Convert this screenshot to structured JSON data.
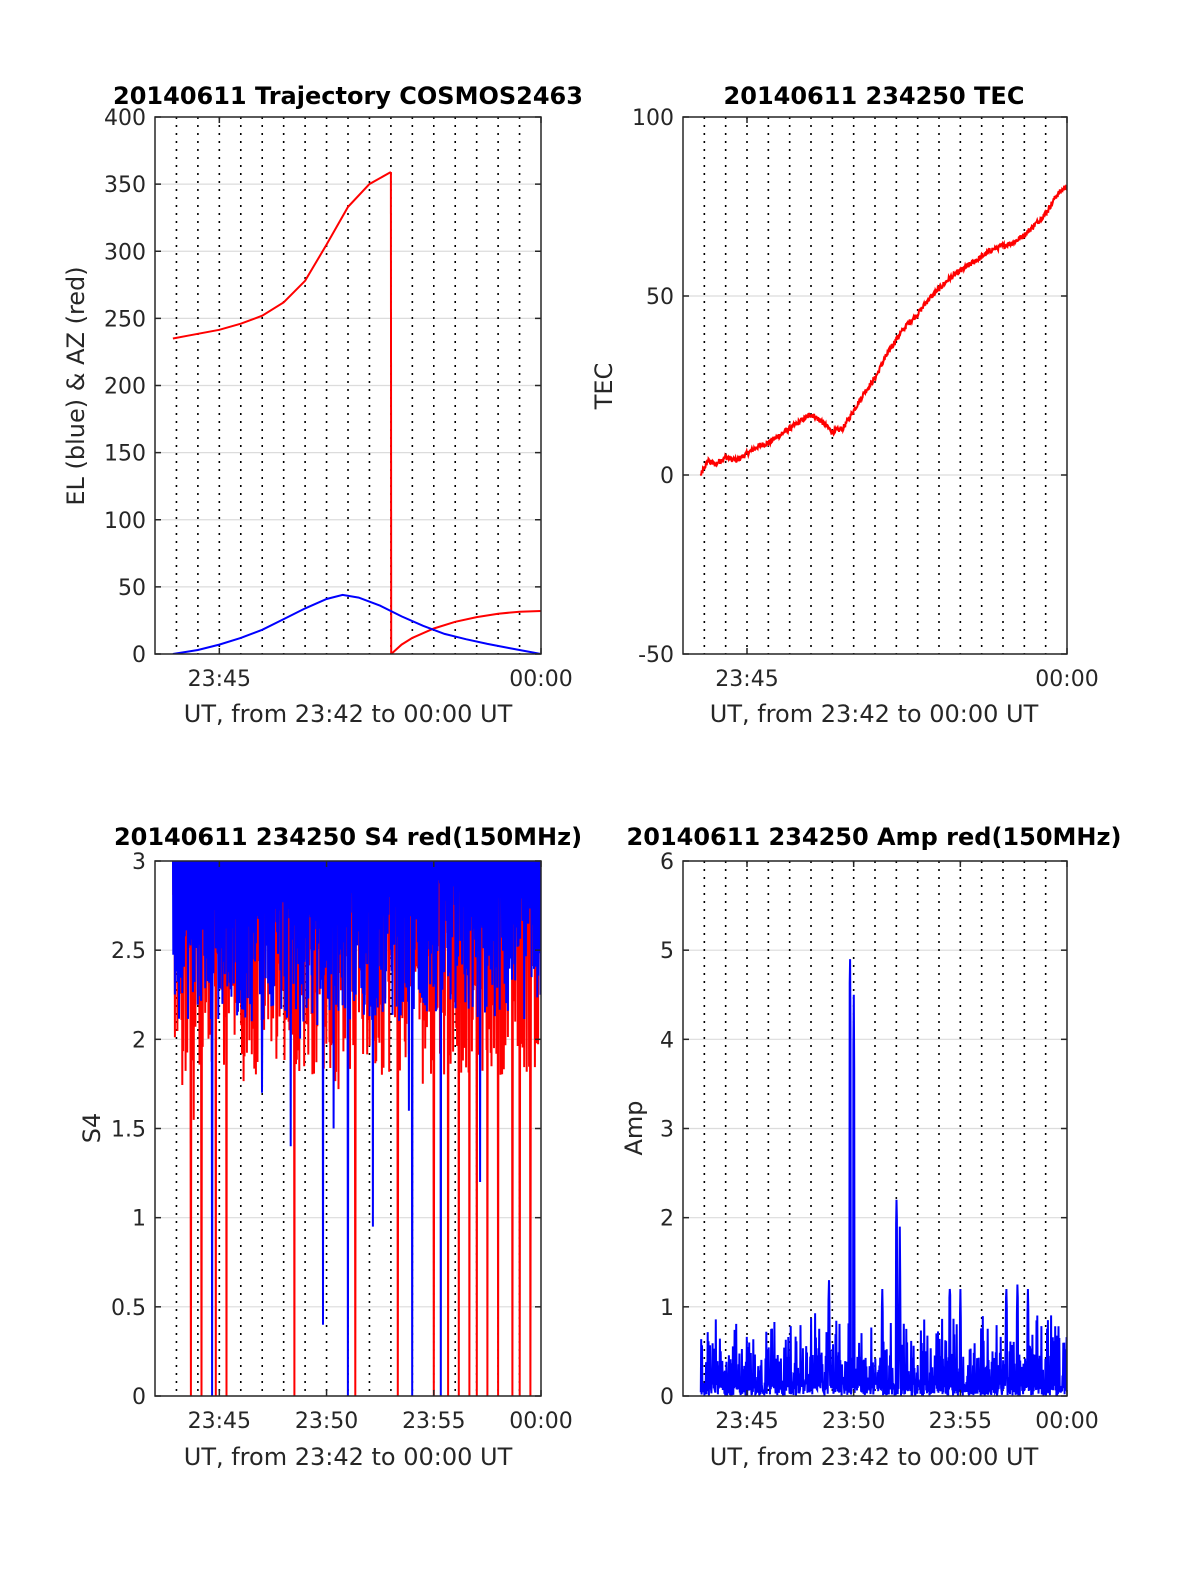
{
  "figure": {
    "background": "#ffffff",
    "grid_color": "#dcdcdc",
    "minute_line_color": "#000000",
    "colors": {
      "red": "#ff0000",
      "blue": "#0000ff"
    }
  },
  "chart_data": [
    {
      "id": "trajectory",
      "type": "line",
      "title": "20140611 Trajectory COSMOS2463",
      "xlabel": "UT, from 23:42 to 00:00 UT",
      "ylabel": "EL (blue) & AZ (red)",
      "xlim": [
        "23:42:00",
        "00:00:00"
      ],
      "ylim": [
        0,
        400
      ],
      "xticks": [
        {
          "t": "23:45:00",
          "label": "23:45"
        },
        {
          "t": "00:00:00",
          "label": "00:00"
        }
      ],
      "yticks": [
        0,
        50,
        100,
        150,
        200,
        250,
        300,
        350,
        400
      ],
      "minute_lines": true,
      "series": [
        {
          "color": "#ff0000",
          "segments": [
            [
              [
                "23:42:50",
                235
              ],
              [
                "23:43:30",
                237
              ],
              [
                "23:44:00",
                238.5
              ],
              [
                "23:45:00",
                241.5
              ],
              [
                "23:46:00",
                246
              ],
              [
                "23:47:00",
                252
              ],
              [
                "23:48:00",
                262
              ],
              [
                "23:49:00",
                278
              ],
              [
                "23:50:00",
                305
              ],
              [
                "23:51:00",
                333
              ],
              [
                "23:52:00",
                350
              ],
              [
                "23:53:00",
                359
              ]
            ],
            [
              [
                "23:53:00",
                359
              ],
              [
                "23:53:01",
                0
              ]
            ],
            [
              [
                "23:53:01",
                0
              ],
              [
                "23:53:30",
                7
              ],
              [
                "23:54:00",
                12
              ],
              [
                "23:55:00",
                19
              ],
              [
                "23:56:00",
                24
              ],
              [
                "23:57:00",
                27.5
              ],
              [
                "23:58:00",
                30
              ],
              [
                "23:59:00",
                31.5
              ],
              [
                "00:00:00",
                32
              ]
            ]
          ]
        },
        {
          "color": "#0000ff",
          "segments": [
            [
              [
                "23:42:50",
                0
              ],
              [
                "23:44:00",
                3
              ],
              [
                "23:45:00",
                7
              ],
              [
                "23:46:00",
                12
              ],
              [
                "23:47:00",
                18
              ],
              [
                "23:48:00",
                26
              ],
              [
                "23:49:00",
                34
              ],
              [
                "23:50:00",
                41
              ],
              [
                "23:50:45",
                44
              ],
              [
                "23:51:30",
                42
              ],
              [
                "23:52:30",
                36
              ],
              [
                "23:53:30",
                28
              ],
              [
                "23:54:30",
                21
              ],
              [
                "23:55:30",
                15
              ],
              [
                "23:56:30",
                11
              ],
              [
                "23:57:30",
                7.5
              ],
              [
                "23:58:30",
                4.5
              ],
              [
                "23:59:30",
                1.5
              ],
              [
                "00:00:00",
                0
              ]
            ]
          ]
        }
      ]
    },
    {
      "id": "tec",
      "type": "line",
      "title": "20140611 234250 TEC",
      "xlabel": "UT, from 23:42 to 00:00 UT",
      "ylabel": "TEC",
      "xlim": [
        "23:42:00",
        "00:00:00"
      ],
      "ylim": [
        -50,
        100
      ],
      "xticks": [
        {
          "t": "23:45:00",
          "label": "23:45"
        },
        {
          "t": "00:00:00",
          "label": "00:00"
        }
      ],
      "yticks": [
        -50,
        0,
        50,
        100
      ],
      "minute_lines": true,
      "series": [
        {
          "color": "#ff0000",
          "noisy": true,
          "points": [
            [
              "23:42:50",
              0
            ],
            [
              "23:43:10",
              4
            ],
            [
              "23:43:30",
              3
            ],
            [
              "23:44:00",
              5
            ],
            [
              "23:44:30",
              4
            ],
            [
              "23:45:00",
              6
            ],
            [
              "23:45:30",
              8
            ],
            [
              "23:46:00",
              9
            ],
            [
              "23:46:30",
              11
            ],
            [
              "23:47:00",
              13
            ],
            [
              "23:47:30",
              15
            ],
            [
              "23:48:00",
              17
            ],
            [
              "23:48:30",
              15
            ],
            [
              "23:49:00",
              12
            ],
            [
              "23:49:30",
              13
            ],
            [
              "23:50:00",
              18
            ],
            [
              "23:50:30",
              23
            ],
            [
              "23:51:00",
              27
            ],
            [
              "23:51:30",
              33
            ],
            [
              "23:52:00",
              38
            ],
            [
              "23:52:30",
              42
            ],
            [
              "23:53:00",
              45
            ],
            [
              "23:53:30",
              49
            ],
            [
              "23:54:00",
              52
            ],
            [
              "23:54:30",
              55
            ],
            [
              "23:55:00",
              57
            ],
            [
              "23:55:30",
              59
            ],
            [
              "23:56:00",
              61
            ],
            [
              "23:56:30",
              63
            ],
            [
              "23:57:00",
              64
            ],
            [
              "23:57:30",
              65
            ],
            [
              "23:58:00",
              67
            ],
            [
              "23:58:30",
              70
            ],
            [
              "23:59:00",
              73
            ],
            [
              "23:59:30",
              78
            ],
            [
              "00:00:00",
              81
            ]
          ]
        }
      ]
    },
    {
      "id": "s4",
      "type": "line",
      "title": "20140611 234250 S4 red(150MHz)",
      "xlabel": "UT, from 23:42 to 00:00 UT",
      "ylabel": "S4",
      "xlim": [
        "23:42:00",
        "00:00:00"
      ],
      "ylim": [
        0,
        3
      ],
      "xticks": [
        {
          "t": "23:45:00",
          "label": "23:45"
        },
        {
          "t": "23:50:00",
          "label": "23:50"
        },
        {
          "t": "23:55:00",
          "label": "23:55"
        },
        {
          "t": "00:00:00",
          "label": "00:00"
        }
      ],
      "yticks": [
        0,
        0.5,
        1,
        1.5,
        2,
        2.5,
        3
      ],
      "minute_lines": true,
      "series": [
        {
          "color": "#ff0000",
          "style": "noise-band",
          "range": [
            "23:42:50",
            "00:00:00"
          ],
          "base_low": 1.8,
          "dropouts": [
            "23:43:40",
            "23:44:10",
            "23:44:50",
            "23:45:20",
            "23:48:30",
            "23:51:20",
            "23:53:20",
            "23:55:00",
            "23:55:40",
            "23:56:10",
            "23:56:40",
            "23:57:00",
            "23:57:30",
            "23:58:00",
            "23:58:40",
            "23:59:00",
            "23:59:30"
          ]
        },
        {
          "color": "#0000ff",
          "style": "noise-band",
          "range": [
            "23:42:50",
            "00:00:00"
          ],
          "base_low": 2.1,
          "dips": [
            [
              "23:44:40",
              0
            ],
            [
              "23:47:00",
              1.7
            ],
            [
              "23:48:20",
              1.4
            ],
            [
              "23:49:50",
              0.4
            ],
            [
              "23:50:20",
              1.5
            ],
            [
              "23:51:00",
              0
            ],
            [
              "23:52:10",
              0.95
            ],
            [
              "23:53:50",
              1.6
            ],
            [
              "23:54:00",
              0
            ],
            [
              "23:55:20",
              0
            ],
            [
              "23:57:10",
              1.2
            ]
          ]
        }
      ]
    },
    {
      "id": "amp",
      "type": "line",
      "title": "20140611 234250 Amp red(150MHz)",
      "xlabel": "UT, from 23:42 to 00:00 UT",
      "ylabel": "Amp",
      "xlim": [
        "23:42:00",
        "00:00:00"
      ],
      "ylim": [
        0,
        6
      ],
      "xticks": [
        {
          "t": "23:45:00",
          "label": "23:45"
        },
        {
          "t": "23:50:00",
          "label": "23:50"
        },
        {
          "t": "23:55:00",
          "label": "23:55"
        },
        {
          "t": "00:00:00",
          "label": "00:00"
        }
      ],
      "yticks": [
        0,
        1,
        2,
        3,
        4,
        5,
        6
      ],
      "minute_lines": true,
      "series": [
        {
          "color": "#0000ff",
          "style": "noise-band",
          "range": [
            "23:42:50",
            "00:00:00"
          ],
          "base_high": 0.7,
          "spikes": [
            [
              "23:48:50",
              1.3
            ],
            [
              "23:49:50",
              4.9
            ],
            [
              "23:50:00",
              4.5
            ],
            [
              "23:51:20",
              1.2
            ],
            [
              "23:52:00",
              2.2
            ],
            [
              "23:52:10",
              1.9
            ],
            [
              "23:54:30",
              1.2
            ],
            [
              "23:55:00",
              1.2
            ],
            [
              "23:57:10",
              1.2
            ],
            [
              "23:57:40",
              1.25
            ],
            [
              "23:58:10",
              1.2
            ]
          ]
        }
      ]
    }
  ]
}
